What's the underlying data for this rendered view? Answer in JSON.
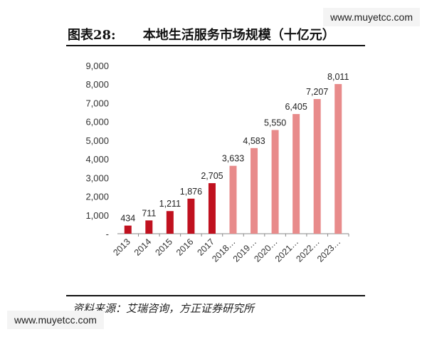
{
  "figure": {
    "number": "图表28:",
    "title": "本地生活服务市场规模（十亿元）",
    "source": "资料来源：艾瑞咨询，方正证券研究所"
  },
  "watermarks": {
    "top": "www.muyetcc.com",
    "bottom": "www.muyetcc.com"
  },
  "colors": {
    "actual": "#c0111f",
    "forecast": "#e88b8b",
    "axis": "#888888"
  },
  "chart_data": {
    "type": "bar",
    "title": "本地生活服务市场规模（十亿元）",
    "categories": [
      "2013",
      "2014",
      "2015",
      "2016",
      "2017",
      "2018…",
      "2019…",
      "2020…",
      "2021…",
      "2022…",
      "2023…"
    ],
    "values": [
      434,
      711,
      1211,
      1876,
      2705,
      3633,
      4583,
      5550,
      6405,
      7207,
      8011
    ],
    "value_labels": [
      "434",
      "711",
      "1,211",
      "1,876",
      "2,705",
      "3,633",
      "4,583",
      "5,550",
      "6,405",
      "7,207",
      "8,011"
    ],
    "forecast_from_index": 5,
    "ylim": [
      0,
      9000
    ],
    "yticks": [
      0,
      1000,
      2000,
      3000,
      4000,
      5000,
      6000,
      7000,
      8000,
      9000
    ],
    "ytick_labels": [
      "-",
      "1,000",
      "2,000",
      "3,000",
      "4,000",
      "5,000",
      "6,000",
      "7,000",
      "8,000",
      "9,000"
    ],
    "grid": false,
    "xlabel": "",
    "ylabel": ""
  }
}
